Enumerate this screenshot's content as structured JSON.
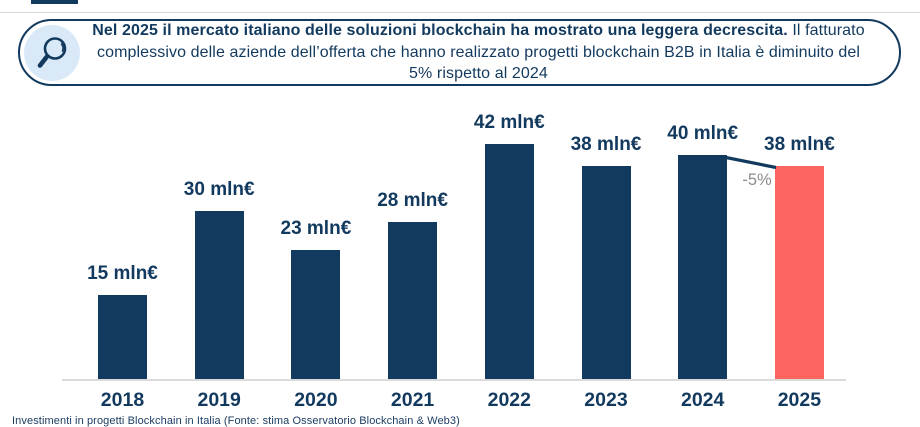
{
  "callout": {
    "icon": "magnifier-icon",
    "bold_text": "Nel 2025 il mercato italiano delle soluzioni blockchain ha mostrato una leggera decrescita.",
    "regular_text": "Il fatturato complessivo delle aziende dell’offerta che hanno realizzato progetti blockchain B2B in Italia è diminuito del 5% rispetto al 2024"
  },
  "chart_data": {
    "type": "bar",
    "title": "",
    "xlabel": "",
    "ylabel": "",
    "unit": "mln€",
    "ylim": [
      0,
      45
    ],
    "grid": false,
    "legend": false,
    "categories": [
      "2018",
      "2019",
      "2020",
      "2021",
      "2022",
      "2023",
      "2024",
      "2025"
    ],
    "values": [
      15,
      30,
      23,
      28,
      42,
      38,
      40,
      38
    ],
    "value_labels": [
      "15 mln€",
      "30 mln€",
      "23 mln€",
      "28 mln€",
      "42 mln€",
      "38 mln€",
      "40 mln€",
      "38 mln€"
    ],
    "bar_colors": [
      "#12395E",
      "#12395E",
      "#12395E",
      "#12395E",
      "#12395E",
      "#12395E",
      "#12395E",
      "#FB655F"
    ],
    "annotation": {
      "text": "-5%",
      "color": "#8C8C8C",
      "between": [
        "2024",
        "2025"
      ]
    }
  },
  "footer": {
    "caption": "Investimenti in progetti Blockchain in Italia (Fonte: stima Osservatorio Blockchain & Web3)"
  },
  "colors": {
    "navy": "#12395E",
    "salmon": "#FB655F",
    "icon_circle_bg": "#D9E9F7",
    "axis_line": "#DBDBDB",
    "annotation_gray": "#8C8C8C",
    "hairline": "#D8D8D8"
  }
}
